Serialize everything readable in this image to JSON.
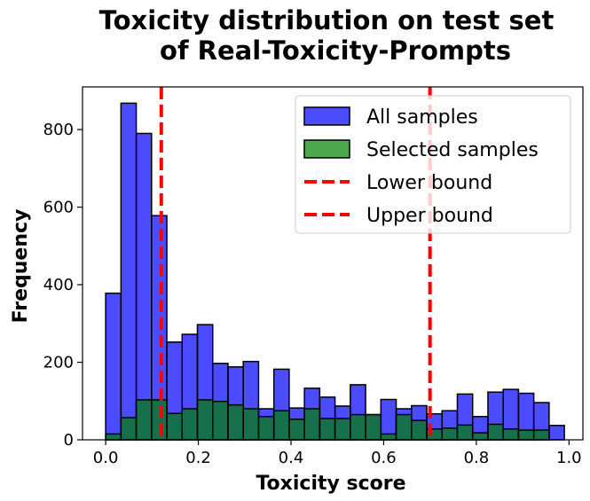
{
  "chart_data": {
    "type": "bar",
    "title_lines": [
      "Toxicity distribution on test set",
      "of Real-Toxicity-Prompts"
    ],
    "xlabel": "Toxicity score",
    "ylabel": "Frequency",
    "xlim": [
      -0.05,
      1.03
    ],
    "ylim": [
      0,
      910
    ],
    "xticks": [
      0.0,
      0.2,
      0.4,
      0.6,
      0.8,
      1.0
    ],
    "xtick_labels": [
      "0.0",
      "0.2",
      "0.4",
      "0.6",
      "0.8",
      "1.0"
    ],
    "yticks": [
      0,
      200,
      400,
      600,
      800
    ],
    "ytick_labels": [
      "0",
      "200",
      "400",
      "600",
      "800"
    ],
    "bin_edges": [
      0.0,
      0.033,
      0.066,
      0.099,
      0.132,
      0.165,
      0.198,
      0.231,
      0.264,
      0.297,
      0.33,
      0.363,
      0.396,
      0.429,
      0.462,
      0.495,
      0.528,
      0.561,
      0.594,
      0.627,
      0.66,
      0.693,
      0.726,
      0.759,
      0.792,
      0.825,
      0.858,
      0.891,
      0.924,
      0.957,
      0.99
    ],
    "series": [
      {
        "name": "All samples",
        "color": "#0000ff",
        "values": [
          378,
          868,
          790,
          578,
          252,
          272,
          297,
          197,
          188,
          202,
          80,
          182,
          82,
          133,
          110,
          87,
          142,
          65,
          104,
          80,
          88,
          67,
          75,
          118,
          60,
          123,
          130,
          120,
          96,
          37
        ]
      },
      {
        "name": "Selected samples",
        "color": "#008000",
        "values": [
          15,
          57,
          103,
          103,
          68,
          80,
          103,
          99,
          90,
          80,
          60,
          75,
          53,
          80,
          55,
          55,
          65,
          65,
          15,
          65,
          50,
          28,
          30,
          38,
          18,
          40,
          28,
          25,
          25,
          0
        ]
      }
    ],
    "vlines": [
      {
        "name": "Lower bound",
        "x": 0.12,
        "color": "#ff0000",
        "style": "dashed"
      },
      {
        "name": "Upper bound",
        "x": 0.7,
        "color": "#ff0000",
        "style": "dashed"
      }
    ],
    "legend_position": "upper right",
    "grid": false
  }
}
